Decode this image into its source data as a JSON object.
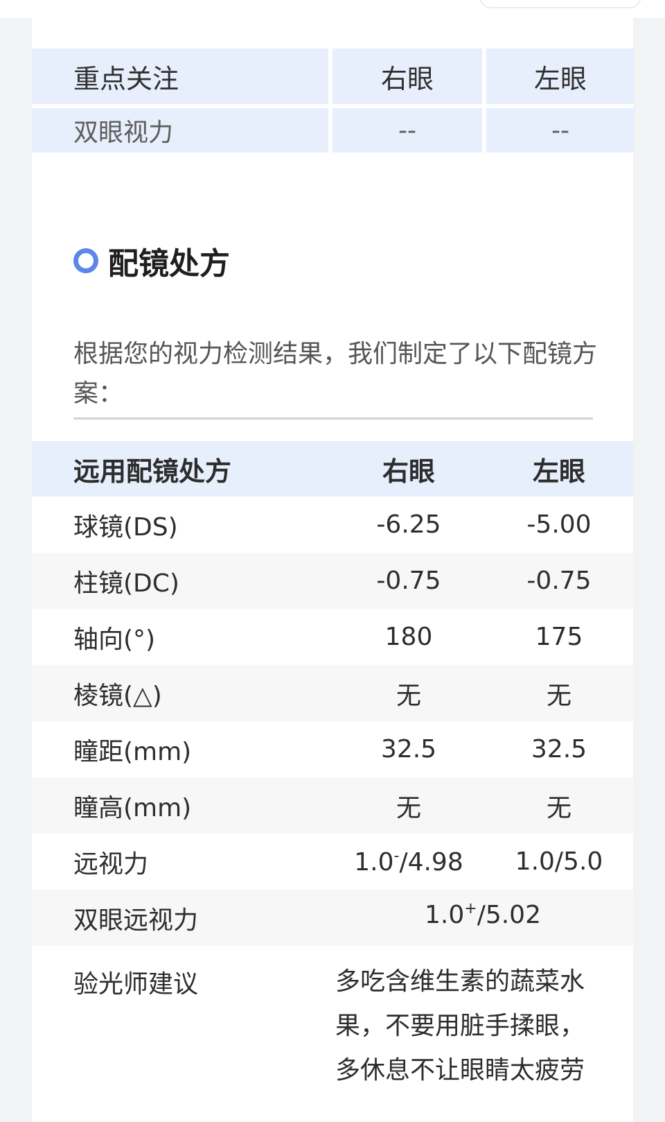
{
  "focus_table": {
    "headers": [
      "重点关注",
      "右眼",
      "左眼"
    ],
    "rows": [
      [
        "双眼视力",
        "--",
        "--"
      ]
    ]
  },
  "section": {
    "title": "配镜处方",
    "description": "根据您的视力检测结果，我们制定了以下配镜方案："
  },
  "prescription": {
    "headers": [
      "远用配镜处方",
      "右眼",
      "左眼"
    ],
    "rows": [
      {
        "label": "球镜(DS)",
        "right": "-6.25",
        "left": "-5.00"
      },
      {
        "label": "柱镜(DC)",
        "right": "-0.75",
        "left": "-0.75"
      },
      {
        "label": "轴向(°)",
        "right": "180",
        "left": "175"
      },
      {
        "label": "棱镜(△)",
        "right": "无",
        "left": "无"
      },
      {
        "label": "瞳距(mm)",
        "right": "32.5",
        "left": "32.5"
      },
      {
        "label": "瞳高(mm)",
        "right": "无",
        "left": "无"
      }
    ],
    "far_vision": {
      "label": "远视力",
      "right_base": "1.0",
      "right_sup": "-",
      "right_tail": "/4.98",
      "left": "1.0/5.0"
    },
    "binocular_far_vision": {
      "label": "双眼远视力",
      "base": "1.0",
      "sup": "+",
      "tail": "/5.02"
    },
    "advice": {
      "label": "验光师建议",
      "text": "多吃含维生素的蔬菜水果，不要用脏手揉眼，多休息不让眼睛太疲劳"
    }
  },
  "colors": {
    "header_bg": "#e7eefc",
    "accent": "#5e86e8",
    "alt_row_bg": "#f7f7f7"
  }
}
